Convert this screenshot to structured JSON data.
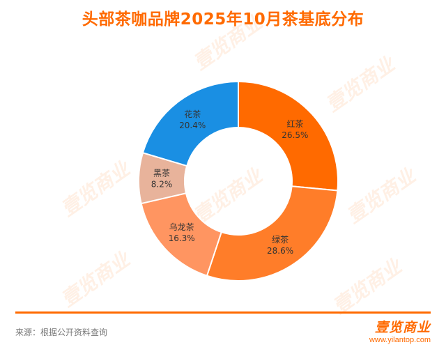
{
  "title": "头部茶咖品牌2025年10月茶基底分布",
  "source": "来源：根据公开资料查询",
  "logo": {
    "name": "壹览商业",
    "url": "www.yilantop.com"
  },
  "watermark": "壹览商业",
  "colors": {
    "accent": "#ff6a00"
  },
  "chart_data": {
    "type": "pie",
    "donut": true,
    "title": "头部茶咖品牌2025年10月茶基底分布",
    "slices": [
      {
        "label": "红茶",
        "value": 26.5,
        "display": "26.5%",
        "color": "#ff6a00"
      },
      {
        "label": "绿茶",
        "value": 28.6,
        "display": "28.6%",
        "color": "#ff7d29"
      },
      {
        "label": "乌龙茶",
        "value": 16.3,
        "display": "16.3%",
        "color": "#ff9561"
      },
      {
        "label": "黑茶",
        "value": 8.2,
        "display": "8.2%",
        "color": "#e8b39b"
      },
      {
        "label": "花茶",
        "value": 20.4,
        "display": "20.4%",
        "color": "#1a8fe3"
      }
    ]
  }
}
